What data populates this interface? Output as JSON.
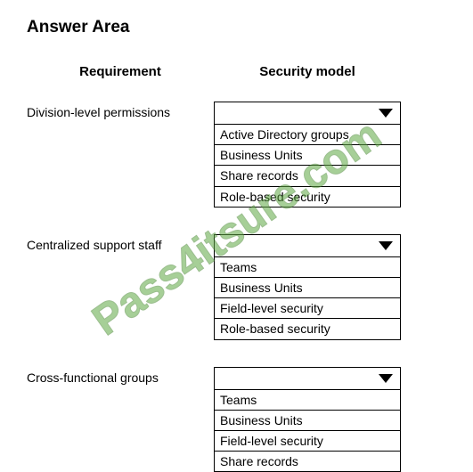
{
  "title": "Answer Area",
  "headers": {
    "requirement": "Requirement",
    "security_model": "Security model"
  },
  "rows": [
    {
      "requirement": "Division-level permissions",
      "options": [
        "Active Directory groups",
        "Business Units",
        "Share records",
        "Role-based security"
      ]
    },
    {
      "requirement": "Centralized support staff",
      "options": [
        "Teams",
        "Business Units",
        "Field-level security",
        "Role-based security"
      ]
    },
    {
      "requirement": "Cross-functional groups",
      "options": [
        "Teams",
        "Business Units",
        "Field-level security",
        "Share records"
      ]
    }
  ],
  "watermark": "Pass4itsure.com"
}
